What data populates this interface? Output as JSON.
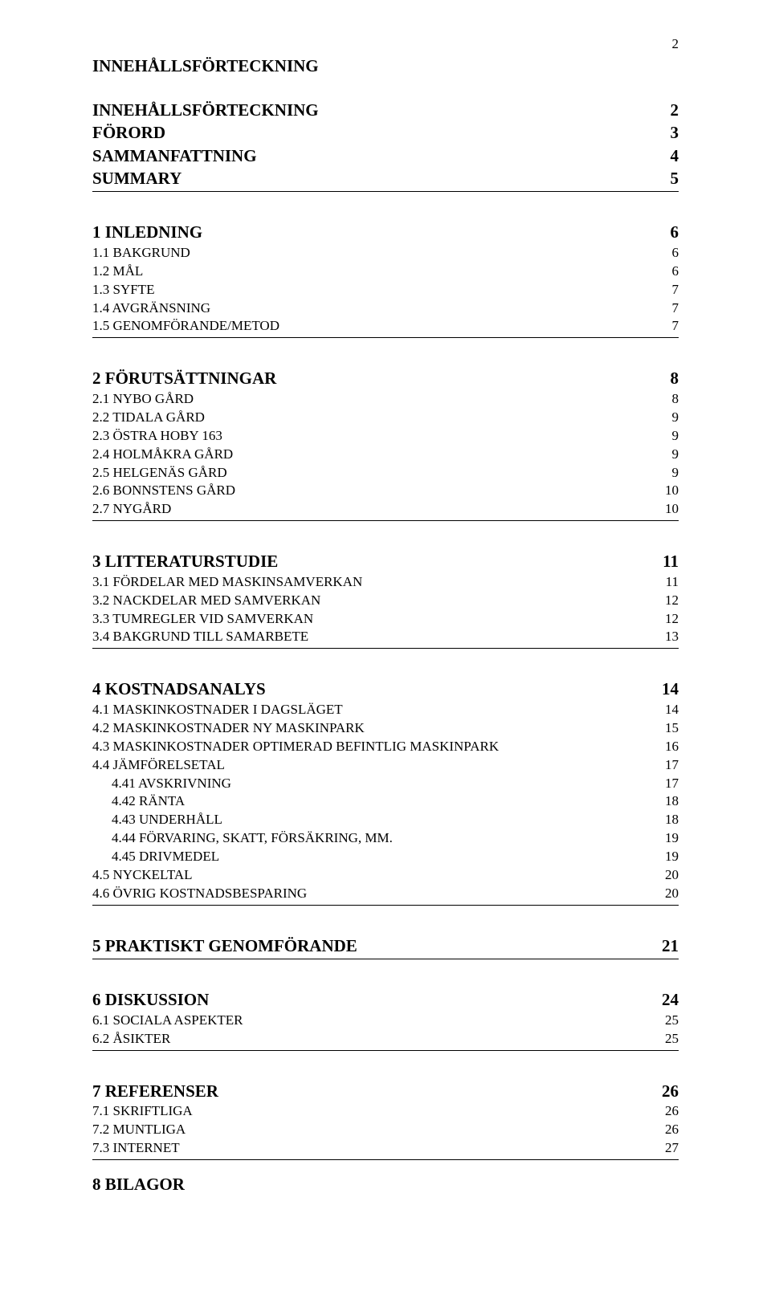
{
  "page_number": "2",
  "title": "INNEHÅLLSFÖRTECKNING",
  "sections": [
    {
      "heading": null,
      "items": [
        {
          "label": "INNEHÅLLSFÖRTECKNING",
          "page": "2",
          "bold": true,
          "size": "section-heading"
        },
        {
          "label": "FÖRORD",
          "page": "3",
          "bold": true,
          "size": "section-heading"
        },
        {
          "label": "SAMMANFATTNING",
          "page": "4",
          "bold": true,
          "size": "section-heading"
        },
        {
          "label": "SUMMARY",
          "page": "5",
          "bold": true,
          "size": "section-heading"
        }
      ]
    },
    {
      "heading": {
        "label": "1 INLEDNING",
        "page": "6"
      },
      "items": [
        {
          "label": "1.1 BAKGRUND",
          "page": "6",
          "size": "normal"
        },
        {
          "label": "1.2 MÅL",
          "page": "6",
          "size": "normal"
        },
        {
          "label": "1.3 SYFTE",
          "page": "7",
          "size": "normal"
        },
        {
          "label": "1.4 AVGRÄNSNING",
          "page": "7",
          "size": "normal"
        },
        {
          "label": "1.5 GENOMFÖRANDE/METOD",
          "page": "7",
          "size": "normal"
        }
      ]
    },
    {
      "heading": {
        "label": "2 FÖRUTSÄTTNINGAR",
        "page": "8"
      },
      "items": [
        {
          "label": "2.1 NYBO GÅRD",
          "page": "8",
          "size": "normal"
        },
        {
          "label": "2.2 TIDALA GÅRD",
          "page": "9",
          "size": "normal"
        },
        {
          "label": "2.3 ÖSTRA HOBY 163",
          "page": "9",
          "size": "normal"
        },
        {
          "label": "2.4 HOLMÅKRA GÅRD",
          "page": "9",
          "size": "normal"
        },
        {
          "label": "2.5 HELGENÄS GÅRD",
          "page": "9",
          "size": "normal"
        },
        {
          "label": "2.6 BONNSTENS GÅRD",
          "page": "10",
          "size": "normal"
        },
        {
          "label": "2.7 NYGÅRD",
          "page": "10",
          "size": "normal"
        }
      ]
    },
    {
      "heading": {
        "label": "3 LITTERATURSTUDIE",
        "page": "11"
      },
      "items": [
        {
          "label": "3.1 FÖRDELAR MED MASKINSAMVERKAN",
          "page": "11",
          "size": "normal"
        },
        {
          "label": "3.2 NACKDELAR MED SAMVERKAN",
          "page": "12",
          "size": "normal"
        },
        {
          "label": "3.3 TUMREGLER VID SAMVERKAN",
          "page": "12",
          "size": "normal"
        },
        {
          "label": "3.4 BAKGRUND TILL SAMARBETE",
          "page": "13",
          "size": "normal"
        }
      ]
    },
    {
      "heading": {
        "label": "4 KOSTNADSANALYS",
        "page": "14"
      },
      "items": [
        {
          "label": "4.1 MASKINKOSTNADER I DAGSLÄGET",
          "page": "14",
          "size": "normal"
        },
        {
          "label": "4.2 MASKINKOSTNADER NY MASKINPARK",
          "page": "15",
          "size": "normal"
        },
        {
          "label": "4.3 MASKINKOSTNADER OPTIMERAD BEFINTLIG MASKINPARK",
          "page": "16",
          "size": "normal"
        },
        {
          "label": "4.4 JÄMFÖRELSETAL",
          "page": "17",
          "size": "normal"
        },
        {
          "label": "4.41 AVSKRIVNING",
          "page": "17",
          "size": "normal",
          "indent": 1
        },
        {
          "label": "4.42 RÄNTA",
          "page": "18",
          "size": "normal",
          "indent": 1
        },
        {
          "label": "4.43 UNDERHÅLL",
          "page": "18",
          "size": "normal",
          "indent": 1
        },
        {
          "label": "4.44 FÖRVARING, SKATT, FÖRSÄKRING, MM.",
          "page": "19",
          "size": "normal",
          "indent": 1
        },
        {
          "label": "4.45 DRIVMEDEL",
          "page": "19",
          "size": "normal",
          "indent": 1
        },
        {
          "label": "4.5 NYCKELTAL",
          "page": "20",
          "size": "normal"
        },
        {
          "label": "4.6 ÖVRIG KOSTNADSBESPARING",
          "page": "20",
          "size": "normal"
        }
      ]
    },
    {
      "heading": {
        "label": "5 PRAKTISKT GENOMFÖRANDE",
        "page": "21"
      },
      "items": []
    },
    {
      "heading": {
        "label": "6 DISKUSSION",
        "page": "24"
      },
      "items": [
        {
          "label": "6.1 SOCIALA ASPEKTER",
          "page": "25",
          "size": "normal"
        },
        {
          "label": "6.2 ÅSIKTER",
          "page": "25",
          "size": "normal"
        }
      ]
    },
    {
      "heading": {
        "label": "7 REFERENSER",
        "page": "26"
      },
      "items": [
        {
          "label": "7.1 SKRIFTLIGA",
          "page": "26",
          "size": "normal"
        },
        {
          "label": "7.2 MUNTLIGA",
          "page": "26",
          "size": "normal"
        },
        {
          "label": "7.3 INTERNET",
          "page": "27",
          "size": "normal"
        }
      ]
    }
  ],
  "final_heading": "8 BILAGOR"
}
